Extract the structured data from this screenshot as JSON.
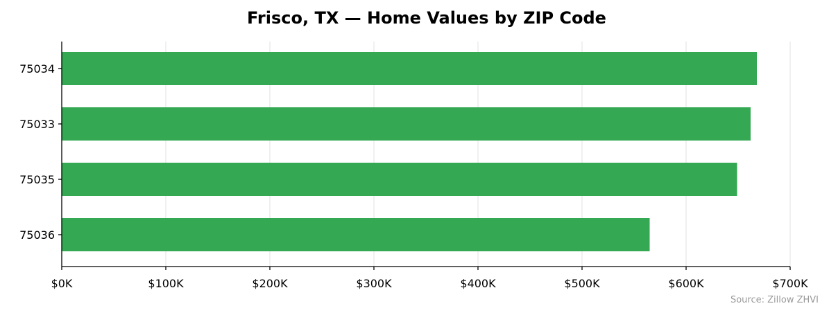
{
  "chart_data": {
    "type": "bar",
    "orientation": "horizontal",
    "title": "Frisco, TX — Home Values by ZIP Code",
    "categories": [
      "75034",
      "75033",
      "75035",
      "75036"
    ],
    "values": [
      668000,
      662000,
      649000,
      565000
    ],
    "xlim": [
      0,
      700000
    ],
    "xticks": [
      0,
      100000,
      200000,
      300000,
      400000,
      500000,
      600000,
      700000
    ],
    "xtick_labels": [
      "$0K",
      "$100K",
      "$200K",
      "$300K",
      "$400K",
      "$500K",
      "$600K",
      "$700K"
    ],
    "grid": "vertical",
    "bar_color": "#34a853",
    "source": "Source: Zillow ZHVI"
  }
}
